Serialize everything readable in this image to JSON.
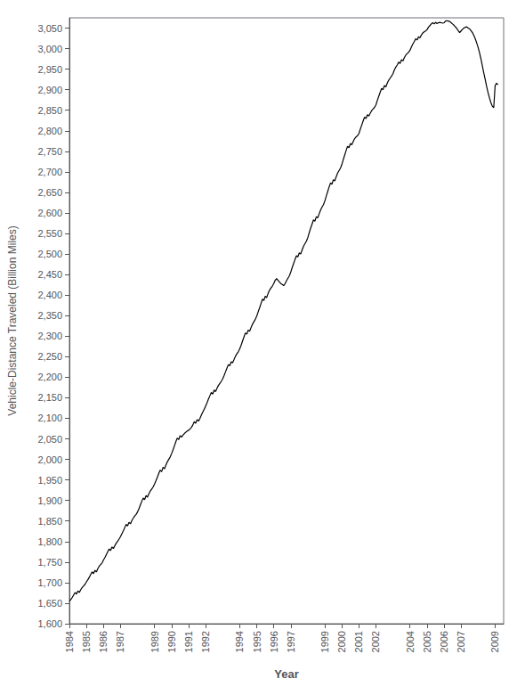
{
  "chart_data": {
    "type": "line",
    "xlabel": "Year",
    "ylabel": "Vehicle-Distance Traveled (Billion Miles)",
    "color": "#000000",
    "grid": false,
    "xlim": [
      1984,
      2009.5
    ],
    "xticks": [
      1984,
      1985,
      1986,
      1987,
      1989,
      1990,
      1991,
      1992,
      1994,
      1995,
      1996,
      1997,
      1999,
      2000,
      2001,
      2002,
      2004,
      2005,
      2006,
      2007,
      2009
    ],
    "ylim": [
      1600,
      3075
    ],
    "yticks": [
      {
        "value": 1600,
        "label": "1,600"
      },
      {
        "value": 1650,
        "label": "1,650"
      },
      {
        "value": 1700,
        "label": "1,700"
      },
      {
        "value": 1750,
        "label": "1,750"
      },
      {
        "value": 1800,
        "label": "1,800"
      },
      {
        "value": 1850,
        "label": "1,850"
      },
      {
        "value": 1900,
        "label": "1,900"
      },
      {
        "value": 1950,
        "label": "1,950"
      },
      {
        "value": 2000,
        "label": "2,000"
      },
      {
        "value": 2050,
        "label": "2,050"
      },
      {
        "value": 2100,
        "label": "2,100"
      },
      {
        "value": 2150,
        "label": "2,150"
      },
      {
        "value": 2200,
        "label": "2,200"
      },
      {
        "value": 2250,
        "label": "2,250"
      },
      {
        "value": 2300,
        "label": "2,300"
      },
      {
        "value": 2350,
        "label": "2,350"
      },
      {
        "value": 2400,
        "label": "2,400"
      },
      {
        "value": 2450,
        "label": "2,450"
      },
      {
        "value": 2500,
        "label": "2,500"
      },
      {
        "value": 2550,
        "label": "2,550"
      },
      {
        "value": 2600,
        "label": "2,600"
      },
      {
        "value": 2650,
        "label": "2,650"
      },
      {
        "value": 2700,
        "label": "2,700"
      },
      {
        "value": 2750,
        "label": "2,750"
      },
      {
        "value": 2800,
        "label": "2,800"
      },
      {
        "value": 2850,
        "label": "2,850"
      },
      {
        "value": 2900,
        "label": "2,900"
      },
      {
        "value": 2950,
        "label": "2,950"
      },
      {
        "value": 3000,
        "label": "3,000"
      },
      {
        "value": 3050,
        "label": "3,050"
      }
    ],
    "x": [
      1984.0,
      1984.083,
      1984.167,
      1984.25,
      1984.333,
      1984.417,
      1984.5,
      1984.583,
      1984.667,
      1984.75,
      1984.833,
      1984.917,
      1985.0,
      1985.083,
      1985.167,
      1985.25,
      1985.333,
      1985.417,
      1985.5,
      1985.583,
      1985.667,
      1985.75,
      1985.833,
      1985.917,
      1986.0,
      1986.083,
      1986.167,
      1986.25,
      1986.333,
      1986.417,
      1986.5,
      1986.583,
      1986.667,
      1986.75,
      1986.833,
      1986.917,
      1987.0,
      1987.083,
      1987.167,
      1987.25,
      1987.333,
      1987.417,
      1987.5,
      1987.583,
      1987.667,
      1987.75,
      1987.833,
      1987.917,
      1988.0,
      1988.083,
      1988.167,
      1988.25,
      1988.333,
      1988.417,
      1988.5,
      1988.583,
      1988.667,
      1988.75,
      1988.833,
      1988.917,
      1989.0,
      1989.083,
      1989.167,
      1989.25,
      1989.333,
      1989.417,
      1989.5,
      1989.583,
      1989.667,
      1989.75,
      1989.833,
      1989.917,
      1990.0,
      1990.083,
      1990.167,
      1990.25,
      1990.333,
      1990.417,
      1990.5,
      1990.583,
      1990.667,
      1990.75,
      1990.833,
      1990.917,
      1991.0,
      1991.083,
      1991.167,
      1991.25,
      1991.333,
      1991.417,
      1991.5,
      1991.583,
      1991.667,
      1991.75,
      1991.833,
      1991.917,
      1992.0,
      1992.083,
      1992.167,
      1992.25,
      1992.333,
      1992.417,
      1992.5,
      1992.583,
      1992.667,
      1992.75,
      1992.833,
      1992.917,
      1993.0,
      1993.083,
      1993.167,
      1993.25,
      1993.333,
      1993.417,
      1993.5,
      1993.583,
      1993.667,
      1993.75,
      1993.833,
      1993.917,
      1994.0,
      1994.083,
      1994.167,
      1994.25,
      1994.333,
      1994.417,
      1994.5,
      1994.583,
      1994.667,
      1994.75,
      1994.833,
      1994.917,
      1995.0,
      1995.083,
      1995.167,
      1995.25,
      1995.333,
      1995.417,
      1995.5,
      1995.583,
      1995.667,
      1995.75,
      1995.833,
      1995.917,
      1996.0,
      1996.083,
      1996.167,
      1996.25,
      1996.333,
      1996.417,
      1996.5,
      1996.583,
      1996.667,
      1996.75,
      1996.833,
      1996.917,
      1997.0,
      1997.083,
      1997.167,
      1997.25,
      1997.333,
      1997.417,
      1997.5,
      1997.583,
      1997.667,
      1997.75,
      1997.833,
      1997.917,
      1998.0,
      1998.083,
      1998.167,
      1998.25,
      1998.333,
      1998.417,
      1998.5,
      1998.583,
      1998.667,
      1998.75,
      1998.833,
      1998.917,
      1999.0,
      1999.083,
      1999.167,
      1999.25,
      1999.333,
      1999.417,
      1999.5,
      1999.583,
      1999.667,
      1999.75,
      1999.833,
      1999.917,
      2000.0,
      2000.083,
      2000.167,
      2000.25,
      2000.333,
      2000.417,
      2000.5,
      2000.583,
      2000.667,
      2000.75,
      2000.833,
      2000.917,
      2001.0,
      2001.083,
      2001.167,
      2001.25,
      2001.333,
      2001.417,
      2001.5,
      2001.583,
      2001.667,
      2001.75,
      2001.833,
      2001.917,
      2002.0,
      2002.083,
      2002.167,
      2002.25,
      2002.333,
      2002.417,
      2002.5,
      2002.583,
      2002.667,
      2002.75,
      2002.833,
      2002.917,
      2003.0,
      2003.083,
      2003.167,
      2003.25,
      2003.333,
      2003.417,
      2003.5,
      2003.583,
      2003.667,
      2003.75,
      2003.833,
      2003.917,
      2004.0,
      2004.083,
      2004.167,
      2004.25,
      2004.333,
      2004.417,
      2004.5,
      2004.583,
      2004.667,
      2004.75,
      2004.833,
      2004.917,
      2005.0,
      2005.083,
      2005.167,
      2005.25,
      2005.333,
      2005.417,
      2005.5,
      2005.583,
      2005.667,
      2005.75,
      2005.833,
      2005.917,
      2006.0,
      2006.083,
      2006.167,
      2006.25,
      2006.333,
      2006.417,
      2006.5,
      2006.583,
      2006.667,
      2006.75,
      2006.833,
      2006.917,
      2007.0,
      2007.083,
      2007.167,
      2007.25,
      2007.333,
      2007.417,
      2007.5,
      2007.583,
      2007.667,
      2007.75,
      2007.833,
      2007.917,
      2008.0,
      2008.083,
      2008.167,
      2008.25,
      2008.333,
      2008.417,
      2008.5,
      2008.583,
      2008.667,
      2008.75,
      2008.833,
      2008.917,
      2009.0,
      2009.083,
      2009.167
    ],
    "values": [
      1655,
      1659,
      1664,
      1670,
      1676,
      1672,
      1680,
      1676,
      1683,
      1688,
      1692,
      1696,
      1702,
      1707,
      1713,
      1720,
      1726,
      1722,
      1730,
      1726,
      1734,
      1740,
      1744,
      1748,
      1755,
      1761,
      1768,
      1775,
      1782,
      1778,
      1787,
      1783,
      1790,
      1796,
      1801,
      1806,
      1812,
      1819,
      1826,
      1834,
      1842,
      1838,
      1847,
      1843,
      1851,
      1857,
      1862,
      1866,
      1872,
      1880,
      1889,
      1898,
      1906,
      1902,
      1912,
      1908,
      1916,
      1923,
      1928,
      1933,
      1940,
      1948,
      1957,
      1966,
      1974,
      1970,
      1981,
      1977,
      1986,
      1994,
      2000,
      2006,
      2014,
      2023,
      2033,
      2043,
      2052,
      2048,
      2058,
      2054,
      2059,
      2063,
      2066,
      2069,
      2071,
      2074,
      2078,
      2084,
      2092,
      2088,
      2097,
      2093,
      2100,
      2108,
      2115,
      2122,
      2130,
      2138,
      2147,
      2155,
      2163,
      2159,
      2169,
      2165,
      2173,
      2180,
      2185,
      2190,
      2196,
      2204,
      2213,
      2222,
      2231,
      2228,
      2238,
      2235,
      2243,
      2251,
      2257,
      2262,
      2269,
      2278,
      2288,
      2298,
      2308,
      2305,
      2315,
      2312,
      2321,
      2329,
      2335,
      2341,
      2349,
      2359,
      2369,
      2379,
      2390,
      2387,
      2397,
      2394,
      2404,
      2412,
      2417,
      2422,
      2428,
      2436,
      2440,
      2436,
      2432,
      2428,
      2426,
      2423,
      2428,
      2435,
      2441,
      2447,
      2456,
      2467,
      2477,
      2487,
      2496,
      2493,
      2503,
      2500,
      2510,
      2519,
      2525,
      2531,
      2540,
      2552,
      2563,
      2573,
      2583,
      2580,
      2591,
      2588,
      2598,
      2607,
      2614,
      2620,
      2629,
      2641,
      2652,
      2663,
      2673,
      2670,
      2681,
      2678,
      2688,
      2697,
      2703,
      2709,
      2718,
      2730,
      2741,
      2752,
      2762,
      2759,
      2769,
      2766,
      2774,
      2781,
      2785,
      2788,
      2793,
      2804,
      2814,
      2824,
      2833,
      2830,
      2839,
      2836,
      2843,
      2849,
      2853,
      2857,
      2863,
      2874,
      2884,
      2894,
      2903,
      2900,
      2910,
      2907,
      2916,
      2923,
      2928,
      2933,
      2939,
      2948,
      2955,
      2960,
      2967,
      2964,
      2973,
      2970,
      2978,
      2984,
      2988,
      2991,
      2996,
      3004,
      3011,
      3017,
      3024,
      3021,
      3029,
      3026,
      3033,
      3038,
      3041,
      3043,
      3046,
      3052,
      3056,
      3060,
      3063,
      3060,
      3064,
      3061,
      3063,
      3064,
      3063,
      3062,
      3063,
      3067,
      3068,
      3067,
      3066,
      3063,
      3060,
      3057,
      3053,
      3049,
      3044,
      3039,
      3043,
      3047,
      3050,
      3052,
      3053,
      3050,
      3048,
      3044,
      3039,
      3032,
      3024,
      3014,
      3003,
      2990,
      2975,
      2958,
      2941,
      2925,
      2908,
      2893,
      2880,
      2869,
      2860,
      2856,
      2910,
      2916,
      2912
    ]
  }
}
